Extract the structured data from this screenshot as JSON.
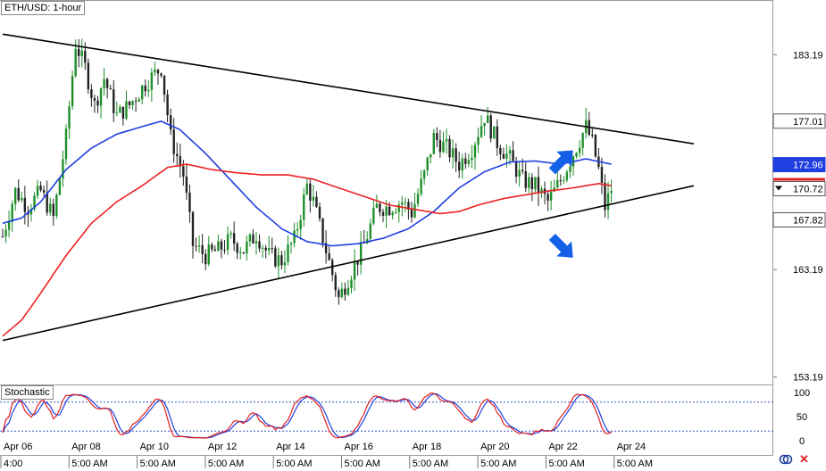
{
  "header": {
    "title": "ETH/USD: 1-hour"
  },
  "indicator": {
    "name": "Stochastic"
  },
  "colors": {
    "bull": "#1f8f2a",
    "bear": "#222222",
    "ma_blue": "#1f3fe0",
    "ma_red": "#ee2020",
    "trendline": "#000000",
    "arrow": "#1560e8",
    "stoch_k": "#e02020",
    "stoch_d": "#2040e0",
    "price_tag_current": "#e02020",
    "price_tag_blue": "#1f3fe0"
  },
  "chart_data": {
    "type": "candlestick",
    "title": "ETH/USD: 1-hour",
    "y_ticks": [
      "183.19",
      "163.19",
      "153.19"
    ],
    "ylim": [
      152.5,
      188.2
    ],
    "x_ticks": [
      {
        "date": "Apr 06",
        "time": "4:00"
      },
      {
        "date": "Apr 08",
        "time": "5:00 AM"
      },
      {
        "date": "Apr 10",
        "time": "5:00 AM"
      },
      {
        "date": "Apr 12",
        "time": "5:00 AM"
      },
      {
        "date": "Apr 14",
        "time": "5:00 AM"
      },
      {
        "date": "Apr 16",
        "time": "5:00 AM"
      },
      {
        "date": "Apr 18",
        "time": "5:00 AM"
      },
      {
        "date": "Apr 20",
        "time": "5:00 AM"
      },
      {
        "date": "Apr 22",
        "time": "5:00 AM"
      },
      {
        "date": "Apr 24",
        "time": "5:00 AM"
      }
    ],
    "price_tags": [
      {
        "label": "177.01",
        "style": "white"
      },
      {
        "label": "172.96",
        "style": "blue"
      },
      {
        "label": "170.72",
        "style": "current"
      },
      {
        "label": "167.82",
        "style": "white"
      }
    ],
    "ohlc_keypoints": [
      [
        0,
        166.3
      ],
      [
        4,
        170.5
      ],
      [
        8,
        169.0
      ],
      [
        12,
        170.5
      ],
      [
        16,
        168.0
      ],
      [
        20,
        175.5
      ],
      [
        23,
        184.2
      ],
      [
        26,
        182.0
      ],
      [
        29,
        178.5
      ],
      [
        32,
        181.0
      ],
      [
        36,
        177.5
      ],
      [
        40,
        178.5
      ],
      [
        45,
        180.5
      ],
      [
        50,
        182.0
      ],
      [
        53,
        175.5
      ],
      [
        57,
        172.0
      ],
      [
        60,
        165.5
      ],
      [
        64,
        164.5
      ],
      [
        68,
        165.0
      ],
      [
        72,
        166.0
      ],
      [
        76,
        165.0
      ],
      [
        80,
        166.5
      ],
      [
        84,
        164.5
      ],
      [
        88,
        164.0
      ],
      [
        92,
        166.0
      ],
      [
        96,
        171.0
      ],
      [
        98,
        169.5
      ],
      [
        102,
        165.0
      ],
      [
        106,
        160.5
      ],
      [
        110,
        163.0
      ],
      [
        114,
        165.5
      ],
      [
        118,
        169.0
      ],
      [
        122,
        169.0
      ],
      [
        126,
        169.5
      ],
      [
        129,
        168.5
      ],
      [
        133,
        172.0
      ],
      [
        136,
        175.5
      ],
      [
        140,
        174.5
      ],
      [
        144,
        173.0
      ],
      [
        148,
        174.5
      ],
      [
        152,
        177.5
      ],
      [
        156,
        175.0
      ],
      [
        160,
        173.5
      ],
      [
        164,
        171.5
      ],
      [
        168,
        171.0
      ],
      [
        172,
        169.5
      ],
      [
        176,
        171.5
      ],
      [
        180,
        174.0
      ],
      [
        184,
        176.5
      ],
      [
        186,
        175.0
      ],
      [
        188,
        172.5
      ],
      [
        190,
        169.0
      ],
      [
        192,
        170.7
      ]
    ],
    "ma_blue_keypoints": [
      [
        0,
        167.5
      ],
      [
        6,
        168.0
      ],
      [
        12,
        169.5
      ],
      [
        20,
        172.5
      ],
      [
        28,
        174.5
      ],
      [
        36,
        175.8
      ],
      [
        44,
        176.5
      ],
      [
        50,
        177.0
      ],
      [
        56,
        176.2
      ],
      [
        64,
        174.0
      ],
      [
        72,
        171.5
      ],
      [
        80,
        169.0
      ],
      [
        88,
        167.0
      ],
      [
        96,
        165.8
      ],
      [
        104,
        165.4
      ],
      [
        112,
        165.6
      ],
      [
        120,
        166.1
      ],
      [
        128,
        167.0
      ],
      [
        136,
        168.6
      ],
      [
        144,
        170.8
      ],
      [
        152,
        172.3
      ],
      [
        160,
        173.2
      ],
      [
        168,
        173.3
      ],
      [
        176,
        173.0
      ],
      [
        184,
        173.5
      ],
      [
        192,
        173.0
      ]
    ],
    "ma_red_keypoints": [
      [
        0,
        157.0
      ],
      [
        6,
        158.5
      ],
      [
        12,
        161.0
      ],
      [
        20,
        164.5
      ],
      [
        28,
        167.5
      ],
      [
        36,
        169.5
      ],
      [
        44,
        171.0
      ],
      [
        52,
        172.7
      ],
      [
        58,
        173.0
      ],
      [
        66,
        172.5
      ],
      [
        74,
        172.2
      ],
      [
        82,
        172.0
      ],
      [
        90,
        172.0
      ],
      [
        98,
        171.6
      ],
      [
        106,
        170.8
      ],
      [
        114,
        170.0
      ],
      [
        122,
        169.2
      ],
      [
        130,
        168.8
      ],
      [
        138,
        168.4
      ],
      [
        144,
        168.6
      ],
      [
        150,
        169.2
      ],
      [
        158,
        169.8
      ],
      [
        166,
        170.2
      ],
      [
        172,
        170.5
      ],
      [
        180,
        170.8
      ],
      [
        188,
        171.2
      ],
      [
        192,
        171.0
      ]
    ],
    "trendlines": [
      {
        "name": "upper",
        "points": [
          [
            0,
            185.1
          ],
          [
            218,
            174.9
          ]
        ]
      },
      {
        "name": "lower",
        "points": [
          [
            0,
            156.6
          ],
          [
            218,
            171.0
          ]
        ]
      }
    ],
    "arrows": [
      {
        "direction": "up",
        "bar": 176.5,
        "price": 173.3
      },
      {
        "direction": "down",
        "bar": 176.5,
        "price": 165.3
      }
    ],
    "stochastic": {
      "y_ticks": [
        "100",
        "50",
        "0"
      ],
      "levels": [
        80,
        20
      ],
      "bars": 193
    }
  }
}
